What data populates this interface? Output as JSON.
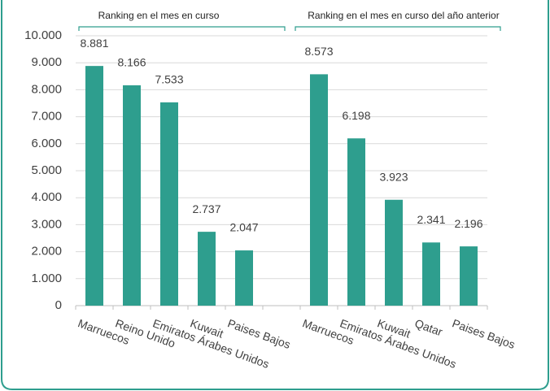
{
  "chart_data": {
    "type": "bar",
    "group_labels": [
      "Ranking en el mes en curso",
      "Ranking en el mes en curso del año anterior"
    ],
    "categories": [
      "Marruecos",
      "Reino Unido",
      "Emiratos Árabes Unidos",
      "Kuwait",
      "Paises Bajos",
      null,
      "Marruecos",
      "Emiratos Árabes Unidos",
      "Kuwait",
      "Qatar",
      "Paises Bajos"
    ],
    "values": [
      8881,
      8166,
      7533,
      2737,
      2047,
      null,
      8573,
      6198,
      3923,
      2341,
      2196
    ],
    "value_labels": [
      "8.881",
      "8.166",
      "7.533",
      "2.737",
      "2.047",
      null,
      "8.573",
      "6.198",
      "3.923",
      "2.341",
      "2.196"
    ],
    "color": "#2e9e8e",
    "ylim": [
      0,
      10000
    ],
    "yticks": [
      0,
      {
        "value": 1000,
        "label": "1.000"
      },
      {
        "value": 2000,
        "label": "2.000"
      },
      {
        "value": 3000,
        "label": "3.000"
      },
      {
        "value": 4000,
        "label": "4.000"
      },
      {
        "value": 5000,
        "label": "5.000"
      },
      {
        "value": 6000,
        "label": "6.000"
      },
      {
        "value": 7000,
        "label": "7.000"
      },
      {
        "value": 8000,
        "label": "8.000"
      },
      {
        "value": 9000,
        "label": "9.000"
      },
      {
        "value": 10000,
        "label": "10.000"
      }
    ],
    "grid": true
  }
}
